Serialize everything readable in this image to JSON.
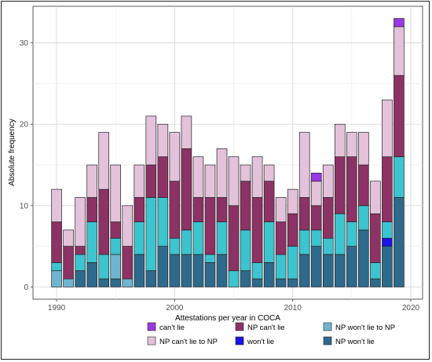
{
  "chart_data": {
    "type": "bar",
    "stacked": true,
    "xlabel": "Attestations per year in COCA",
    "ylabel": "Absolute frequency",
    "xlim": [
      1988,
      2021
    ],
    "ylim": [
      -1.5,
      34.5
    ],
    "x_ticks": [
      1990,
      2000,
      2010,
      2020
    ],
    "y_ticks": [
      0,
      10,
      20,
      30
    ],
    "grid": true,
    "legend_position": "bottom",
    "years": [
      1990,
      1991,
      1992,
      1993,
      1994,
      1995,
      1996,
      1997,
      1998,
      1999,
      2000,
      2001,
      2002,
      2003,
      2004,
      2005,
      2006,
      2007,
      2008,
      2009,
      2010,
      2011,
      2012,
      2013,
      2014,
      2015,
      2016,
      2017,
      2018,
      2019
    ],
    "series": [
      {
        "name": "NP won't lie",
        "color": "#2e6a8c",
        "values": [
          0,
          0,
          2,
          3,
          1,
          1,
          0,
          4,
          2,
          5,
          4,
          4,
          4,
          3,
          4,
          0,
          2,
          1,
          3,
          1,
          1,
          4,
          5,
          4,
          4,
          5,
          7,
          1,
          5,
          11
        ]
      },
      {
        "name": "won't lie",
        "color": "#1a14e6",
        "values": [
          0,
          0,
          0,
          0,
          0,
          0,
          0,
          0,
          0,
          0,
          0,
          0,
          0,
          0,
          0,
          0,
          0,
          0,
          0,
          0,
          0,
          0,
          0,
          0,
          0,
          0,
          0,
          0,
          1,
          0
        ]
      },
      {
        "name": "NP won't lie to NP",
        "color": "#6fb5d1",
        "values": [
          2,
          1,
          0,
          0,
          0,
          3,
          1,
          0,
          0,
          0,
          0,
          0,
          0,
          0,
          0,
          0,
          0,
          0,
          0,
          0,
          0,
          0,
          0,
          0,
          0,
          0,
          0,
          0,
          0,
          0
        ]
      },
      {
        "name": "NP can't lie to NP",
        "color": "#3cc4cf",
        "values": [
          1,
          0,
          2,
          5,
          3,
          2,
          0,
          4,
          9,
          6,
          2,
          3,
          4,
          1,
          4,
          2,
          5,
          2,
          5,
          3,
          4,
          3,
          2,
          2,
          5,
          3,
          3,
          2,
          2,
          5
        ]
      },
      {
        "name": "NP can't lie",
        "color": "#8c3264",
        "values": [
          5,
          4,
          1,
          3,
          8,
          2,
          4,
          3,
          4,
          5,
          7,
          10,
          3,
          7,
          3,
          8,
          6,
          8,
          5,
          4,
          4,
          4,
          3,
          5,
          7,
          8,
          5,
          6,
          8,
          10
        ]
      },
      {
        "name": "NP can't lie to NP",
        "color": "#e4c2da",
        "values": [
          4,
          2,
          6,
          4,
          7,
          7,
          5,
          4,
          6,
          4,
          6,
          4,
          5,
          4,
          6,
          6,
          2,
          5,
          2,
          3,
          3,
          8,
          3,
          4,
          4,
          3,
          4,
          4,
          7,
          6
        ]
      },
      {
        "name": "can't lie",
        "color": "#9b38e6",
        "values": [
          0,
          0,
          0,
          0,
          0,
          0,
          0,
          0,
          0,
          0,
          0,
          0,
          0,
          0,
          0,
          0,
          0,
          0,
          0,
          0,
          0,
          0,
          1,
          0,
          0,
          0,
          0,
          0,
          0,
          1
        ]
      }
    ],
    "legend": [
      {
        "label": "can't lie",
        "color": "#9b38e6"
      },
      {
        "label": "NP can't lie",
        "color": "#8c3264"
      },
      {
        "label": "NP won't lie to NP",
        "color": "#6fb5d1"
      },
      {
        "label": "NP can't lie to NP",
        "color": "#e4c2da"
      },
      {
        "label": "won't lie",
        "color": "#1a14e6"
      },
      {
        "label": "NP won't lie",
        "color": "#2e6a8c"
      }
    ]
  }
}
